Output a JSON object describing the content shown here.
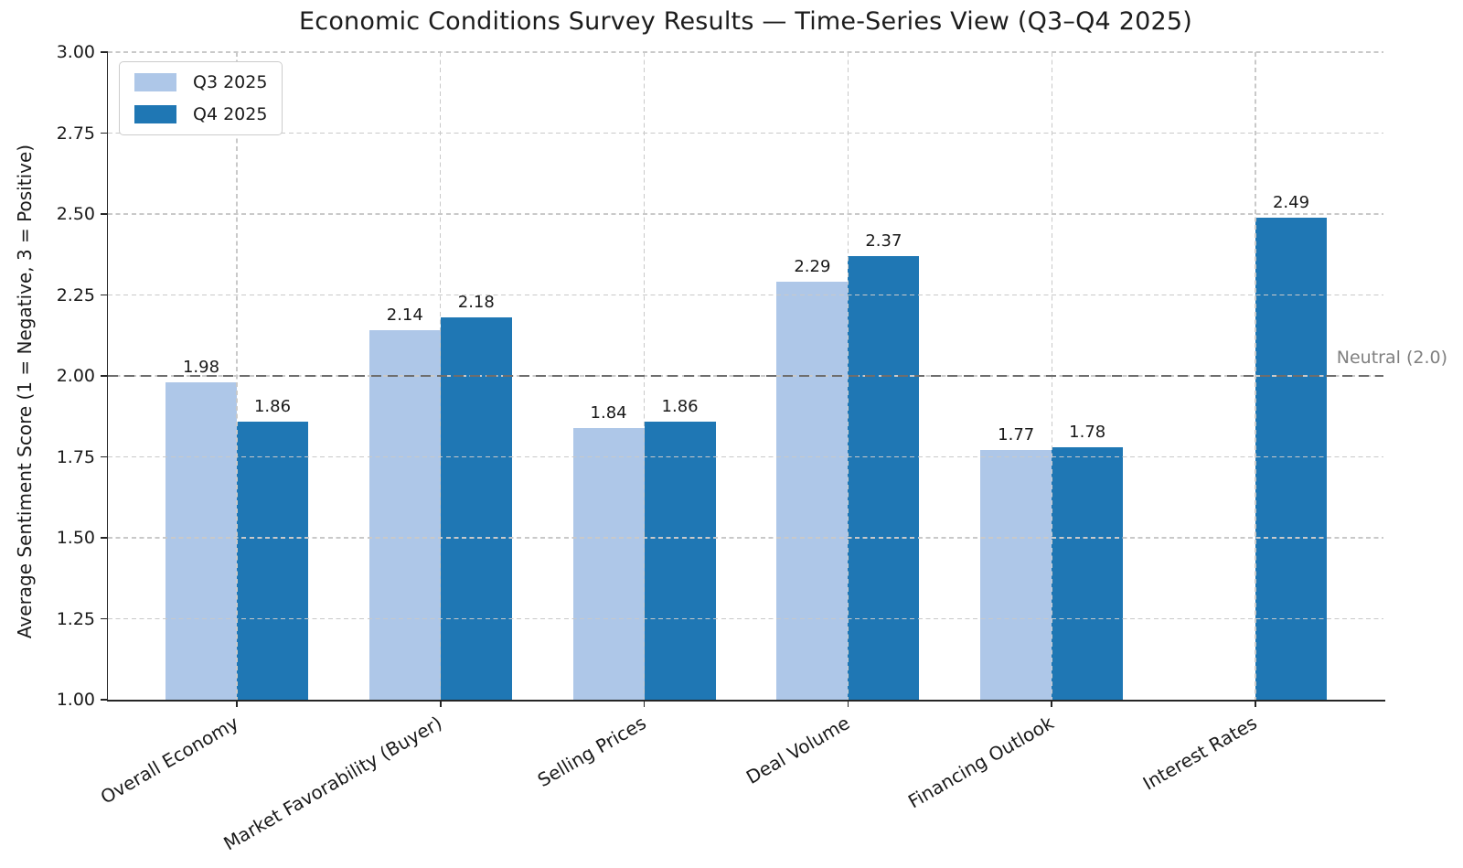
{
  "chart_data": {
    "type": "bar",
    "title": "Economic Conditions Survey Results — Time-Series View (Q3–Q4 2025)",
    "ylabel": "Average Sentiment Score (1 = Negative, 3 = Positive)",
    "xlabel": "",
    "categories": [
      "Overall Economy",
      "Market Favorability (Buyer)",
      "Selling Prices",
      "Deal Volume",
      "Financing Outlook",
      "Interest Rates"
    ],
    "series": [
      {
        "name": "Q3 2025",
        "color": "#aec7e8",
        "values": [
          1.98,
          2.14,
          1.84,
          2.29,
          1.77,
          null
        ]
      },
      {
        "name": "Q4 2025",
        "color": "#1f77b4",
        "values": [
          1.86,
          2.18,
          1.86,
          2.37,
          1.78,
          2.49
        ]
      }
    ],
    "ylim": [
      1.0,
      3.0
    ],
    "ytick_step": 0.25,
    "ytick_decimals": 2,
    "value_label_decimals": 2,
    "grid": true,
    "grid_over_bars": true,
    "legend_position": "upper left",
    "xtick_rotation_deg": 30,
    "reference_line": {
      "value": 2.0,
      "label": "Neutral (2.0)",
      "color": "#6e6e6e"
    },
    "colors": {
      "axis_text": "#1a1a1a",
      "grid": "#c9c9c9",
      "reference_label": "#808080",
      "spine": "#262626"
    }
  }
}
